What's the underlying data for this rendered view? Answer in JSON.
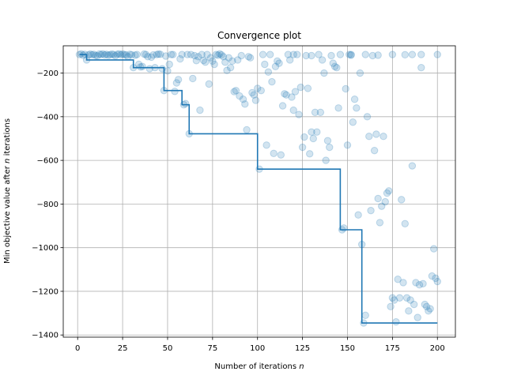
{
  "chart_data": {
    "type": "scatter",
    "title": "Convergence plot",
    "xlabel_main": "Number of iterations ",
    "xlabel_var": "n",
    "ylabel_main": "Min objective value after ",
    "ylabel_var": "n",
    "ylabel_tail": " iterations",
    "xlim": [
      -8,
      210
    ],
    "ylim": [
      -1410,
      -75
    ],
    "xticks": [
      0,
      25,
      50,
      75,
      100,
      125,
      150,
      175,
      200
    ],
    "yticks": [
      -1400,
      -1200,
      -1000,
      -800,
      -600,
      -400,
      -200
    ],
    "grid": true,
    "colors": {
      "series": "#1f77b4"
    },
    "series": [
      {
        "type": "line-step",
        "points": [
          [
            1,
            -115
          ],
          [
            5,
            -115
          ],
          [
            5,
            -140
          ],
          [
            31,
            -140
          ],
          [
            31,
            -175
          ],
          [
            48,
            -175
          ],
          [
            48,
            -280
          ],
          [
            58,
            -280
          ],
          [
            58,
            -345
          ],
          [
            62,
            -345
          ],
          [
            62,
            -478
          ],
          [
            100,
            -478
          ],
          [
            100,
            -640
          ],
          [
            146,
            -640
          ],
          [
            146,
            -918
          ],
          [
            158,
            -918
          ],
          [
            158,
            -1345
          ],
          [
            200,
            -1345
          ]
        ]
      },
      {
        "type": "scatter",
        "points": [
          [
            1,
            -115
          ],
          [
            2,
            -112
          ],
          [
            3,
            -118
          ],
          [
            4,
            -114
          ],
          [
            5,
            -140
          ],
          [
            6,
            -117
          ],
          [
            7,
            -113
          ],
          [
            8,
            -116
          ],
          [
            9,
            -114
          ],
          [
            10,
            -119
          ],
          [
            11,
            -121
          ],
          [
            12,
            -113
          ],
          [
            13,
            -115
          ],
          [
            14,
            -112
          ],
          [
            15,
            -117
          ],
          [
            16,
            -114
          ],
          [
            17,
            -118
          ],
          [
            18,
            -116
          ],
          [
            19,
            -113
          ],
          [
            20,
            -115
          ],
          [
            21,
            -121
          ],
          [
            22,
            -114
          ],
          [
            23,
            -112
          ],
          [
            24,
            -116
          ],
          [
            25,
            -113
          ],
          [
            26,
            -115
          ],
          [
            27,
            -117
          ],
          [
            28,
            -125
          ],
          [
            29,
            -114
          ],
          [
            30,
            -116
          ],
          [
            31,
            -175
          ],
          [
            32,
            -118
          ],
          [
            33,
            -115
          ],
          [
            34,
            -160
          ],
          [
            35,
            -172
          ],
          [
            36,
            -170
          ],
          [
            37,
            -113
          ],
          [
            38,
            -115
          ],
          [
            39,
            -125
          ],
          [
            40,
            -180
          ],
          [
            41,
            -127
          ],
          [
            42,
            -117
          ],
          [
            43,
            -175
          ],
          [
            44,
            -115
          ],
          [
            45,
            -113
          ],
          [
            46,
            -114
          ],
          [
            47,
            -180
          ],
          [
            48,
            -280
          ],
          [
            49,
            -122
          ],
          [
            50,
            -190
          ],
          [
            51,
            -160
          ],
          [
            52,
            -115
          ],
          [
            53,
            -115
          ],
          [
            54,
            -284
          ],
          [
            55,
            -245
          ],
          [
            56,
            -230
          ],
          [
            57,
            -135
          ],
          [
            58,
            -115
          ],
          [
            59,
            -345
          ],
          [
            60,
            -340
          ],
          [
            61,
            -115
          ],
          [
            62,
            -478
          ],
          [
            63,
            -115
          ],
          [
            64,
            -225
          ],
          [
            65,
            -120
          ],
          [
            66,
            -143
          ],
          [
            67,
            -125
          ],
          [
            68,
            -370
          ],
          [
            69,
            -115
          ],
          [
            70,
            -142
          ],
          [
            71,
            -150
          ],
          [
            72,
            -115
          ],
          [
            73,
            -250
          ],
          [
            74,
            -130
          ],
          [
            75,
            -145
          ],
          [
            76,
            -160
          ],
          [
            77,
            -115
          ],
          [
            78,
            -118
          ],
          [
            79,
            -112
          ],
          [
            80,
            -117
          ],
          [
            81,
            -125
          ],
          [
            82,
            -150
          ],
          [
            83,
            -188
          ],
          [
            84,
            -130
          ],
          [
            85,
            -175
          ],
          [
            86,
            -145
          ],
          [
            87,
            -285
          ],
          [
            88,
            -280
          ],
          [
            89,
            -140
          ],
          [
            90,
            -305
          ],
          [
            91,
            -120
          ],
          [
            92,
            -320
          ],
          [
            93,
            -342
          ],
          [
            94,
            -460
          ],
          [
            95,
            -125
          ],
          [
            96,
            -130
          ],
          [
            97,
            -290
          ],
          [
            98,
            -300
          ],
          [
            99,
            -325
          ],
          [
            100,
            -270
          ],
          [
            101,
            -640
          ],
          [
            102,
            -280
          ],
          [
            103,
            -115
          ],
          [
            104,
            -160
          ],
          [
            105,
            -530
          ],
          [
            106,
            -195
          ],
          [
            107,
            -115
          ],
          [
            108,
            -240
          ],
          [
            109,
            -568
          ],
          [
            110,
            -170
          ],
          [
            111,
            -145
          ],
          [
            112,
            -155
          ],
          [
            113,
            -575
          ],
          [
            114,
            -350
          ],
          [
            115,
            -295
          ],
          [
            116,
            -300
          ],
          [
            117,
            -115
          ],
          [
            118,
            -140
          ],
          [
            119,
            -310
          ],
          [
            120,
            -370
          ],
          [
            121,
            -285
          ],
          [
            122,
            -115
          ],
          [
            123,
            -390
          ],
          [
            124,
            -265
          ],
          [
            125,
            -540
          ],
          [
            126,
            -493
          ],
          [
            127,
            -120
          ],
          [
            128,
            -270
          ],
          [
            129,
            -570
          ],
          [
            130,
            -470
          ],
          [
            131,
            -500
          ],
          [
            132,
            -380
          ],
          [
            133,
            -470
          ],
          [
            134,
            -115
          ],
          [
            135,
            -380
          ],
          [
            136,
            -140
          ],
          [
            137,
            -200
          ],
          [
            138,
            -600
          ],
          [
            139,
            -510
          ],
          [
            140,
            -540
          ],
          [
            141,
            -120
          ],
          [
            142,
            -155
          ],
          [
            143,
            -170
          ],
          [
            144,
            -175
          ],
          [
            145,
            -360
          ],
          [
            146,
            -115
          ],
          [
            147,
            -918
          ],
          [
            148,
            -910
          ],
          [
            149,
            -272
          ],
          [
            150,
            -530
          ],
          [
            151,
            -115
          ],
          [
            152,
            -115
          ],
          [
            153,
            -425
          ],
          [
            154,
            -320
          ],
          [
            155,
            -360
          ],
          [
            156,
            -850
          ],
          [
            157,
            -200
          ],
          [
            158,
            -985
          ],
          [
            159,
            -1345
          ],
          [
            160,
            -1310
          ],
          [
            161,
            -400
          ],
          [
            162,
            -490
          ],
          [
            163,
            -830
          ],
          [
            164,
            -120
          ],
          [
            165,
            -555
          ],
          [
            166,
            -480
          ],
          [
            167,
            -775
          ],
          [
            168,
            -885
          ],
          [
            169,
            -810
          ],
          [
            170,
            -490
          ],
          [
            171,
            -790
          ],
          [
            172,
            -750
          ],
          [
            173,
            -740
          ],
          [
            174,
            -1270
          ],
          [
            175,
            -1230
          ],
          [
            176,
            -1240
          ],
          [
            177,
            -1340
          ],
          [
            178,
            -1145
          ],
          [
            179,
            -1230
          ],
          [
            180,
            -780
          ],
          [
            181,
            -1160
          ],
          [
            182,
            -890
          ],
          [
            183,
            -1230
          ],
          [
            184,
            -1290
          ],
          [
            185,
            -1240
          ],
          [
            186,
            -625
          ],
          [
            187,
            -1260
          ],
          [
            188,
            -1160
          ],
          [
            189,
            -1320
          ],
          [
            190,
            -1170
          ],
          [
            191,
            -175
          ],
          [
            192,
            -1165
          ],
          [
            193,
            -1260
          ],
          [
            194,
            -1270
          ],
          [
            195,
            -1290
          ],
          [
            196,
            -1280
          ],
          [
            197,
            -1130
          ],
          [
            198,
            -1005
          ],
          [
            199,
            -1140
          ],
          [
            200,
            -1155
          ],
          [
            120,
            -115
          ],
          [
            130,
            -120
          ],
          [
            152,
            -118
          ],
          [
            160,
            -115
          ],
          [
            167,
            -118
          ],
          [
            175,
            -115
          ],
          [
            182,
            -116
          ],
          [
            186,
            -115
          ],
          [
            191,
            -115
          ],
          [
            200,
            -115
          ]
        ]
      }
    ]
  }
}
